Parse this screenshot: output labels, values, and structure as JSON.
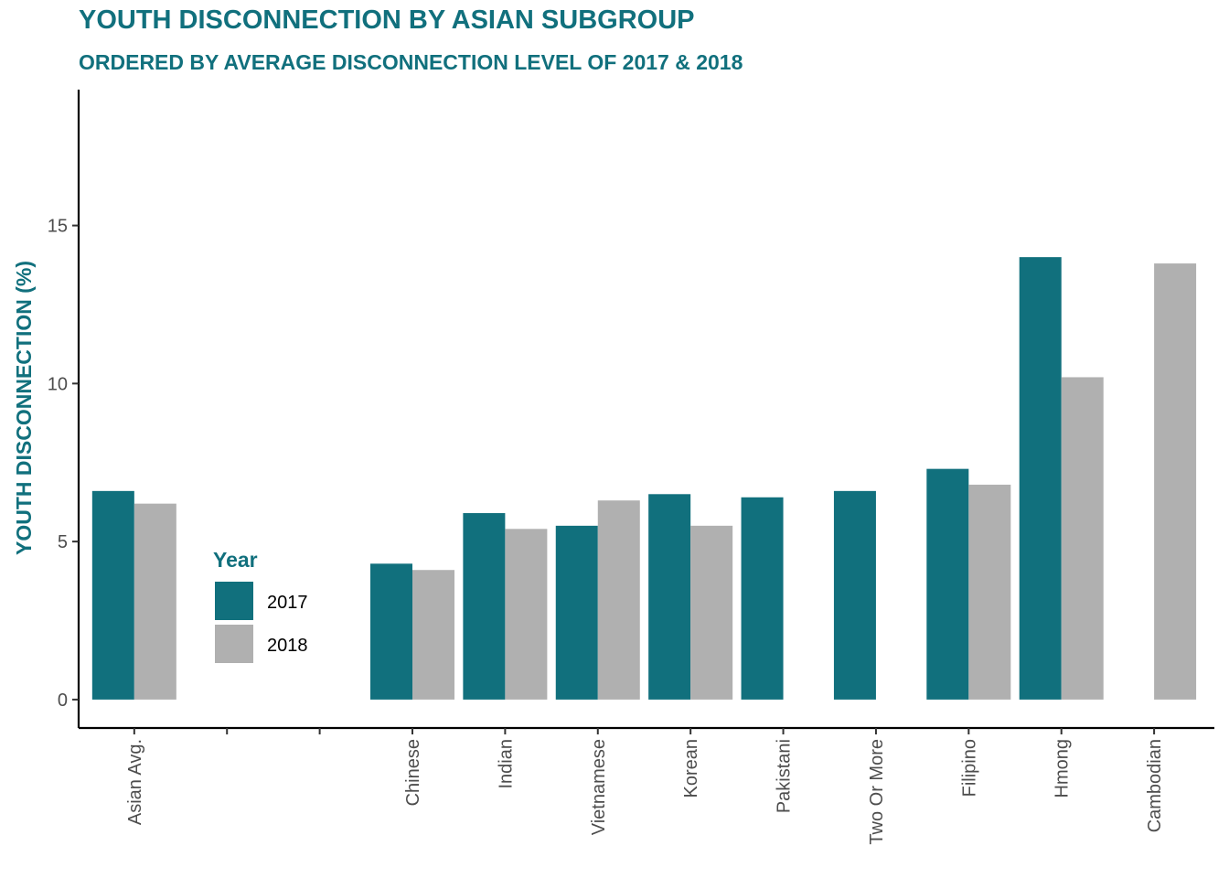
{
  "chart_data": {
    "type": "bar",
    "title": "YOUTH DISCONNECTION BY ASIAN SUBGROUP",
    "subtitle": "ORDERED BY AVERAGE DISCONNECTION LEVEL OF 2017 & 2018",
    "xlabel": "",
    "ylabel": "YOUTH DISCONNECTION (%)",
    "ylim": [
      -0.9,
      19.3
    ],
    "yticks": [
      "0",
      "5",
      "10",
      "15"
    ],
    "categories": [
      "Asian Avg.",
      "",
      "",
      "Chinese",
      "Indian",
      "Vietnamese",
      "Korean",
      "Pakistani",
      "Two Or More",
      "Filipino",
      "Hmong",
      "Cambodian"
    ],
    "series": [
      {
        "name": "2017",
        "color": "#11707d",
        "values": [
          6.6,
          null,
          null,
          4.3,
          5.9,
          5.5,
          6.5,
          6.4,
          6.6,
          7.3,
          14.0,
          null
        ]
      },
      {
        "name": "2018",
        "color": "#b0b0b0",
        "values": [
          6.2,
          null,
          null,
          4.1,
          5.4,
          6.3,
          5.5,
          null,
          null,
          6.8,
          10.2,
          13.8
        ]
      }
    ],
    "legend": {
      "title": "Year",
      "position": "inside-left"
    },
    "grid": false
  }
}
